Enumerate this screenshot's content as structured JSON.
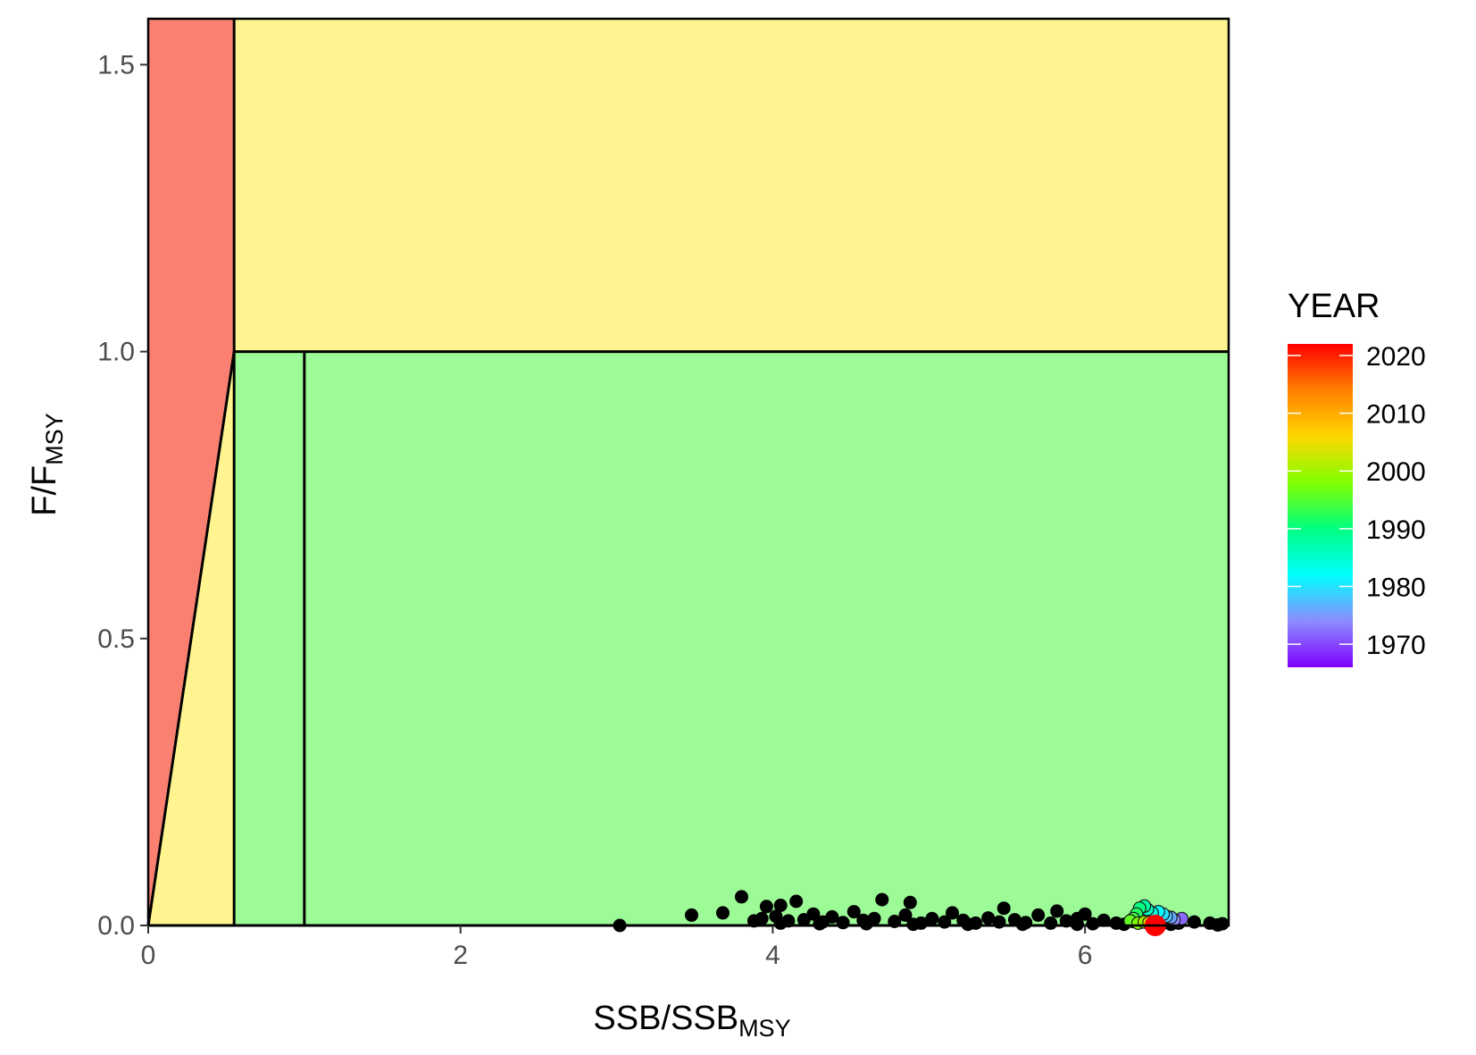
{
  "chart_data": {
    "type": "scatter",
    "title": "",
    "xlabel": {
      "main": "SSB",
      "sep": "/",
      "main2": "SSB",
      "sub": "MSY"
    },
    "ylabel": {
      "main": "F",
      "sep": "/",
      "main2": "F",
      "sub": "MSY"
    },
    "xlim": [
      0,
      6.92
    ],
    "ylim": [
      0,
      1.58
    ],
    "x_ticks": [
      0,
      2,
      4,
      6
    ],
    "x_tick_labels": [
      "0",
      "2",
      "4",
      "6"
    ],
    "y_ticks": [
      0,
      0.5,
      1.0,
      1.5
    ],
    "y_tick_labels": [
      "0.0",
      "0.5",
      "1.0",
      "1.5"
    ],
    "grid": false,
    "reference_lines": {
      "x_limit": 0.55,
      "x_target": 1.0,
      "y_target": 1.0
    },
    "zones": [
      {
        "name": "overfished-overfishing",
        "color": "#fa8072",
        "polygon": [
          [
            0,
            0
          ],
          [
            0.55,
            1.0
          ],
          [
            0.55,
            1.58
          ],
          [
            0,
            1.58
          ]
        ]
      },
      {
        "name": "hcr-triangle",
        "color": "#fff48f",
        "polygon": [
          [
            0,
            0
          ],
          [
            0.55,
            1.0
          ],
          [
            0.55,
            0
          ]
        ]
      },
      {
        "name": "overfishing-upper",
        "color": "#fff48f",
        "polygon": [
          [
            0.55,
            1.0
          ],
          [
            6.92,
            1.0
          ],
          [
            6.92,
            1.58
          ],
          [
            0.55,
            1.58
          ]
        ]
      },
      {
        "name": "sustainable",
        "color": "#9cfb97",
        "polygon": [
          [
            0.55,
            0
          ],
          [
            6.92,
            0
          ],
          [
            6.92,
            1.0
          ],
          [
            0.55,
            1.0
          ]
        ]
      }
    ],
    "uncertainty_points": [
      [
        3.02,
        0.0
      ],
      [
        3.48,
        0.018
      ],
      [
        3.68,
        0.022
      ],
      [
        3.8,
        0.05
      ],
      [
        3.88,
        0.008
      ],
      [
        3.93,
        0.012
      ],
      [
        3.96,
        0.033
      ],
      [
        4.02,
        0.016
      ],
      [
        4.05,
        0.035
      ],
      [
        4.1,
        0.008
      ],
      [
        4.15,
        0.042
      ],
      [
        4.2,
        0.01
      ],
      [
        4.26,
        0.02
      ],
      [
        4.32,
        0.006
      ],
      [
        4.38,
        0.015
      ],
      [
        4.45,
        0.005
      ],
      [
        4.52,
        0.024
      ],
      [
        4.58,
        0.009
      ],
      [
        4.65,
        0.012
      ],
      [
        4.7,
        0.045
      ],
      [
        4.78,
        0.007
      ],
      [
        4.85,
        0.018
      ],
      [
        4.88,
        0.04
      ],
      [
        4.95,
        0.004
      ],
      [
        5.02,
        0.012
      ],
      [
        5.1,
        0.006
      ],
      [
        5.15,
        0.022
      ],
      [
        5.22,
        0.009
      ],
      [
        5.3,
        0.004
      ],
      [
        5.38,
        0.013
      ],
      [
        5.45,
        0.006
      ],
      [
        5.48,
        0.03
      ],
      [
        5.55,
        0.01
      ],
      [
        5.62,
        0.005
      ],
      [
        5.7,
        0.018
      ],
      [
        5.78,
        0.004
      ],
      [
        5.82,
        0.025
      ],
      [
        5.88,
        0.008
      ],
      [
        5.95,
        0.012
      ],
      [
        6.0,
        0.02
      ],
      [
        6.05,
        0.003
      ],
      [
        6.12,
        0.009
      ],
      [
        6.2,
        0.004
      ],
      [
        6.3,
        0.007
      ],
      [
        6.4,
        0.006
      ],
      [
        6.5,
        0.005
      ],
      [
        6.6,
        0.004
      ],
      [
        6.7,
        0.006
      ],
      [
        6.8,
        0.004
      ],
      [
        6.88,
        0.003
      ],
      [
        4.05,
        0.004
      ],
      [
        4.3,
        0.003
      ],
      [
        4.6,
        0.003
      ],
      [
        4.9,
        0.002
      ],
      [
        5.25,
        0.002
      ],
      [
        5.6,
        0.002
      ],
      [
        5.95,
        0.002
      ],
      [
        6.25,
        0.002
      ],
      [
        6.55,
        0.002
      ],
      [
        6.85,
        0.001
      ]
    ],
    "series": [
      {
        "name": "YEAR",
        "points": [
          {
            "x": 6.6,
            "y": 0.008,
            "year": 1970
          },
          {
            "x": 6.62,
            "y": 0.012,
            "year": 1972
          },
          {
            "x": 6.57,
            "y": 0.01,
            "year": 1974
          },
          {
            "x": 6.55,
            "y": 0.014,
            "year": 1976
          },
          {
            "x": 6.52,
            "y": 0.016,
            "year": 1978
          },
          {
            "x": 6.5,
            "y": 0.02,
            "year": 1980
          },
          {
            "x": 6.47,
            "y": 0.024,
            "year": 1982
          },
          {
            "x": 6.43,
            "y": 0.022,
            "year": 1984
          },
          {
            "x": 6.4,
            "y": 0.028,
            "year": 1986
          },
          {
            "x": 6.38,
            "y": 0.034,
            "year": 1988
          },
          {
            "x": 6.35,
            "y": 0.03,
            "year": 1990
          },
          {
            "x": 6.33,
            "y": 0.02,
            "year": 1992
          },
          {
            "x": 6.31,
            "y": 0.012,
            "year": 1994
          },
          {
            "x": 6.29,
            "y": 0.008,
            "year": 1996
          },
          {
            "x": 6.34,
            "y": 0.004,
            "year": 1998
          },
          {
            "x": 6.38,
            "y": 0.006,
            "year": 2000
          },
          {
            "x": 6.41,
            "y": 0.005,
            "year": 2003
          },
          {
            "x": 6.44,
            "y": 0.003,
            "year": 2006
          },
          {
            "x": 6.46,
            "y": 0.002,
            "year": 2010
          },
          {
            "x": 6.47,
            "y": 0.001,
            "year": 2014
          },
          {
            "x": 6.48,
            "y": 0.0,
            "year": 2018
          }
        ]
      },
      {
        "name": "terminal",
        "points": [
          {
            "x": 6.45,
            "y": 0.0,
            "year": 2022
          }
        ]
      }
    ],
    "legend": {
      "title": "YEAR",
      "placement": "right",
      "range": [
        1966,
        2022
      ],
      "breaks": [
        2020,
        2010,
        2000,
        1990,
        1980,
        1970
      ],
      "break_labels": [
        "2020",
        "2010",
        "2000",
        "1990",
        "1980",
        "1970"
      ],
      "gradient_colors": [
        "#7f00ff",
        "#8c8cff",
        "#00ffff",
        "#00ff80",
        "#80ff00",
        "#ffd700",
        "#ff8000",
        "#ff0000"
      ]
    }
  }
}
